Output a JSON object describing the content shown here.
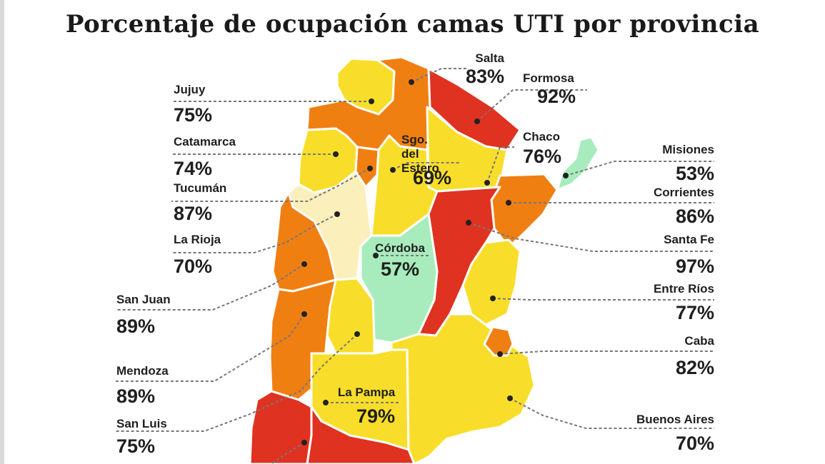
{
  "title": "Porcentaje de ocupación camas UTI por provincia",
  "colors": {
    "red": "#e03220",
    "orange": "#f07f12",
    "yellow": "#f8de2a",
    "light": "#fbefbb",
    "green": "#a8ecbd"
  },
  "provinces": [
    {
      "name": "Salta",
      "value": "83%"
    },
    {
      "name": "Formosa",
      "value": "92%"
    },
    {
      "name": "Jujuy",
      "value": "75%"
    },
    {
      "name": "Catamarca",
      "value": "74%"
    },
    {
      "name": "Sgo. del Estero",
      "value": "69%"
    },
    {
      "name": "Chaco",
      "value": "76%"
    },
    {
      "name": "Misiones",
      "value": "53%"
    },
    {
      "name": "Tucumán",
      "value": "87%"
    },
    {
      "name": "Corrientes",
      "value": "86%"
    },
    {
      "name": "La Rioja",
      "value": "70%"
    },
    {
      "name": "Santa Fe",
      "value": "97%"
    },
    {
      "name": "Córdoba",
      "value": "57%"
    },
    {
      "name": "San Juan",
      "value": "89%"
    },
    {
      "name": "Entre Ríos",
      "value": "77%"
    },
    {
      "name": "Caba",
      "value": "82%"
    },
    {
      "name": "Mendoza",
      "value": "89%"
    },
    {
      "name": "La Pampa",
      "value": "79%"
    },
    {
      "name": "Buenos Aires",
      "value": "70%"
    },
    {
      "name": "San Luis",
      "value": "75%"
    }
  ]
}
